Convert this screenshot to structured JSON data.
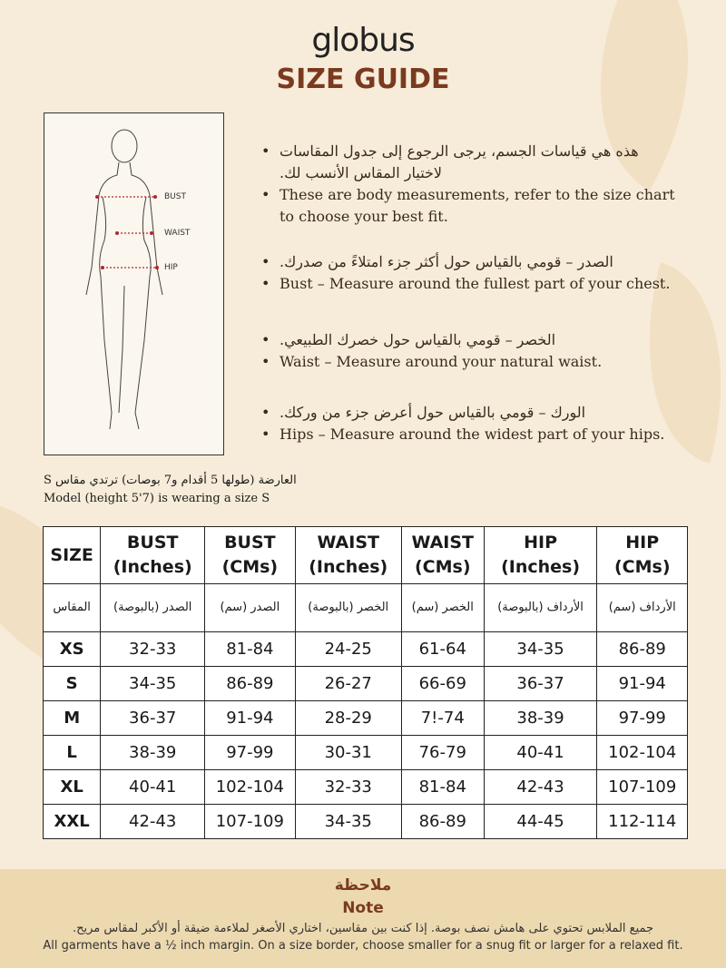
{
  "brand": "globus",
  "title": "SIZE GUIDE",
  "figure": {
    "labels": [
      "BUST",
      "WAIST",
      "HIP"
    ]
  },
  "bullets": [
    {
      "text": "هذه هي قياسات الجسم، يرجى الرجوع إلى جدول المقاسات لاختيار المقاس الأنسب لك.",
      "lang": "ar"
    },
    {
      "text": "These are body measurements, refer to the size chart to choose your best fit.",
      "lang": "en"
    },
    {
      "text": "الصدر – قومي بالقياس حول أكثر جزء امتلاءً من صدرك.",
      "lang": "ar"
    },
    {
      "text": "Bust – Measure around the fullest part of your chest.",
      "lang": "en"
    },
    {
      "text": "الخصر – قومي بالقياس حول خصرك الطبيعي.",
      "lang": "ar"
    },
    {
      "text": "Waist – Measure around your natural waist.",
      "lang": "en"
    },
    {
      "text": "الورك – قومي بالقياس حول أعرض جزء من وركك.",
      "lang": "ar"
    },
    {
      "text": "Hips – Measure around the widest part of your hips.",
      "lang": "en"
    }
  ],
  "model": {
    "ar": "العارضة (طولها 5 أقدام و7 بوصات) ترتدي مقاس S",
    "en": "Model (height 5'7) is wearing a size S"
  },
  "table": {
    "headers": [
      [
        "SIZE",
        ""
      ],
      [
        "BUST",
        "(Inches)"
      ],
      [
        "BUST",
        "(CMs)"
      ],
      [
        "WAIST",
        "(Inches)"
      ],
      [
        "WAIST",
        "(CMs)"
      ],
      [
        "HIP",
        "(Inches)"
      ],
      [
        "HIP",
        "(CMs)"
      ]
    ],
    "headers_ar": [
      "المقاس",
      "الصدر (بالبوصة)",
      "الصدر (سم)",
      "الخصر (بالبوصة)",
      "الخصر (سم)",
      "الأرداف (بالبوصة)",
      "الأرداف (سم)"
    ],
    "rows": [
      [
        "XS",
        "32-33",
        "81-84",
        "24-25",
        "61-64",
        "34-35",
        "86-89"
      ],
      [
        "S",
        "34-35",
        "86-89",
        "26-27",
        "66-69",
        "36-37",
        "91-94"
      ],
      [
        "M",
        "36-37",
        "91-94",
        "28-29",
        "7!-74",
        "38-39",
        "97-99"
      ],
      [
        "L",
        "38-39",
        "97-99",
        "30-31",
        "76-79",
        "40-41",
        "102-104"
      ],
      [
        "XL",
        "40-41",
        "102-104",
        "32-33",
        "81-84",
        "42-43",
        "107-109"
      ],
      [
        "XXL",
        "42-43",
        "107-109",
        "34-35",
        "86-89",
        "44-45",
        "112-114"
      ]
    ]
  },
  "note": {
    "title_ar": "ملاحظة",
    "title": "Note",
    "text_ar": "جميع الملابس تحتوي على هامش نصف بوصة. إذا كنت بين مقاسين، اختاري الأصغر لملاءمة ضيقة أو الأكبر لمقاس مريح.",
    "text": "All garments have a ½ inch margin. On a size border, choose smaller for a snug fit or larger for a relaxed fit."
  },
  "colors": {
    "accent": "#7a3a1f",
    "background": "#f7ecd9",
    "note_band": "#ecd9b0"
  }
}
